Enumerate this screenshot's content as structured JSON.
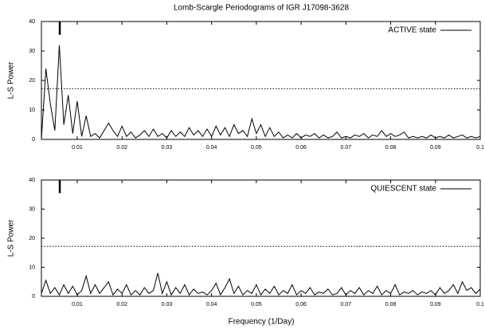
{
  "chart_data": [
    {
      "type": "line",
      "title": "Lomb-Scargle Periodograms of IGR J17098-3628",
      "ylabel": "L-S Power",
      "x": [
        0.002,
        0.003,
        0.004,
        0.005,
        0.006,
        0.007,
        0.008,
        0.009,
        0.01,
        0.011,
        0.012,
        0.013,
        0.014,
        0.015,
        0.016,
        0.017,
        0.018,
        0.019,
        0.02,
        0.021,
        0.022,
        0.023,
        0.024,
        0.025,
        0.026,
        0.027,
        0.028,
        0.029,
        0.03,
        0.031,
        0.032,
        0.033,
        0.034,
        0.035,
        0.036,
        0.037,
        0.038,
        0.039,
        0.04,
        0.041,
        0.042,
        0.043,
        0.044,
        0.045,
        0.046,
        0.047,
        0.048,
        0.049,
        0.05,
        0.051,
        0.052,
        0.053,
        0.054,
        0.055,
        0.056,
        0.057,
        0.058,
        0.059,
        0.06,
        0.061,
        0.062,
        0.063,
        0.064,
        0.065,
        0.066,
        0.067,
        0.068,
        0.069,
        0.07,
        0.071,
        0.072,
        0.073,
        0.074,
        0.075,
        0.076,
        0.077,
        0.078,
        0.079,
        0.08,
        0.081,
        0.082,
        0.083,
        0.084,
        0.085,
        0.086,
        0.087,
        0.088,
        0.089,
        0.09,
        0.091,
        0.092,
        0.093,
        0.094,
        0.095,
        0.096,
        0.097,
        0.098,
        0.099,
        0.1
      ],
      "series": [
        {
          "name": "ACTIVE state",
          "color": "#000000",
          "values": [
            0,
            24,
            12,
            3,
            32,
            5,
            15,
            2,
            13,
            1,
            8,
            1,
            2,
            0.5,
            3,
            5.5,
            3,
            1,
            4.5,
            1,
            2.5,
            0.5,
            1.5,
            3,
            1,
            3.5,
            1,
            2,
            0.5,
            3,
            1,
            2.5,
            1,
            4,
            1.5,
            3,
            1,
            3.5,
            1,
            4.5,
            1.5,
            4,
            1,
            5,
            2,
            3,
            1,
            7,
            2,
            5,
            1,
            4,
            1,
            2.5,
            0.5,
            1.5,
            0.5,
            2,
            0.5,
            1.5,
            1,
            2,
            0.5,
            1.5,
            0.5,
            1,
            2.5,
            0.5,
            1,
            0.5,
            1.5,
            1,
            2,
            0.5,
            1.5,
            1,
            3,
            1,
            2,
            1,
            1.5,
            2.5,
            0.5,
            1,
            0.5,
            1,
            0.5,
            1.5,
            0.5,
            1,
            0.5,
            1.5,
            0.5,
            1,
            1.5,
            0.5,
            1,
            0.5,
            1
          ]
        }
      ],
      "threshold": 17.2,
      "marker_x": 0.0061,
      "marker_y": [
        35.5,
        40
      ],
      "xlim": [
        0.002,
        0.1
      ],
      "xticks": [
        0.01,
        0.02,
        0.03,
        0.04,
        0.05,
        0.06,
        0.07,
        0.08,
        0.09,
        0.1
      ],
      "ylim": [
        0,
        40
      ],
      "yticks": [
        0,
        10,
        20,
        30,
        40
      ]
    },
    {
      "type": "line",
      "ylabel": "L-S Power",
      "xlabel": "Frequency (1/Day)",
      "x": [
        0.002,
        0.003,
        0.004,
        0.005,
        0.006,
        0.007,
        0.008,
        0.009,
        0.01,
        0.011,
        0.012,
        0.013,
        0.014,
        0.015,
        0.016,
        0.017,
        0.018,
        0.019,
        0.02,
        0.021,
        0.022,
        0.023,
        0.024,
        0.025,
        0.026,
        0.027,
        0.028,
        0.029,
        0.03,
        0.031,
        0.032,
        0.033,
        0.034,
        0.035,
        0.036,
        0.037,
        0.038,
        0.039,
        0.04,
        0.041,
        0.042,
        0.043,
        0.044,
        0.045,
        0.046,
        0.047,
        0.048,
        0.049,
        0.05,
        0.051,
        0.052,
        0.053,
        0.054,
        0.055,
        0.056,
        0.057,
        0.058,
        0.059,
        0.06,
        0.061,
        0.062,
        0.063,
        0.064,
        0.065,
        0.066,
        0.067,
        0.068,
        0.069,
        0.07,
        0.071,
        0.072,
        0.073,
        0.074,
        0.075,
        0.076,
        0.077,
        0.078,
        0.079,
        0.08,
        0.081,
        0.082,
        0.083,
        0.084,
        0.085,
        0.086,
        0.087,
        0.088,
        0.089,
        0.09,
        0.091,
        0.092,
        0.093,
        0.094,
        0.095,
        0.096,
        0.097,
        0.098,
        0.099,
        0.1
      ],
      "series": [
        {
          "name": "QUIESCENT state",
          "color": "#000000",
          "values": [
            1,
            5.5,
            1,
            3,
            0.5,
            4,
            1,
            3.5,
            0.5,
            2,
            7,
            1,
            4,
            1,
            3,
            5,
            0.5,
            2.5,
            1,
            4,
            0.5,
            2,
            0.5,
            3,
            1,
            2,
            8,
            1,
            5,
            0.5,
            3,
            1,
            4,
            0.5,
            2.5,
            1,
            1.5,
            0.5,
            2,
            4.5,
            0.5,
            3,
            6,
            1,
            3.5,
            0.5,
            2,
            1,
            4,
            0.5,
            2.5,
            1,
            3.5,
            0.5,
            2,
            1,
            4,
            0.5,
            2,
            1,
            3,
            0.5,
            1.5,
            1,
            2.5,
            0.5,
            1,
            3,
            0.5,
            2,
            1,
            3,
            0.5,
            2,
            1,
            3.5,
            0.5,
            2,
            1,
            4,
            0.5,
            1.5,
            1,
            2,
            0.5,
            1.5,
            1,
            2,
            0.5,
            3,
            1,
            2,
            4,
            1,
            5,
            2,
            3,
            1,
            2.5
          ]
        }
      ],
      "threshold": 17.2,
      "marker_x": 0.0061,
      "marker_y": [
        35.5,
        40
      ],
      "xlim": [
        0.002,
        0.1
      ],
      "xticks": [
        0.01,
        0.02,
        0.03,
        0.04,
        0.05,
        0.06,
        0.07,
        0.08,
        0.09,
        0.1
      ],
      "ylim": [
        0,
        40
      ],
      "yticks": [
        0,
        10,
        20,
        30,
        40
      ]
    }
  ]
}
